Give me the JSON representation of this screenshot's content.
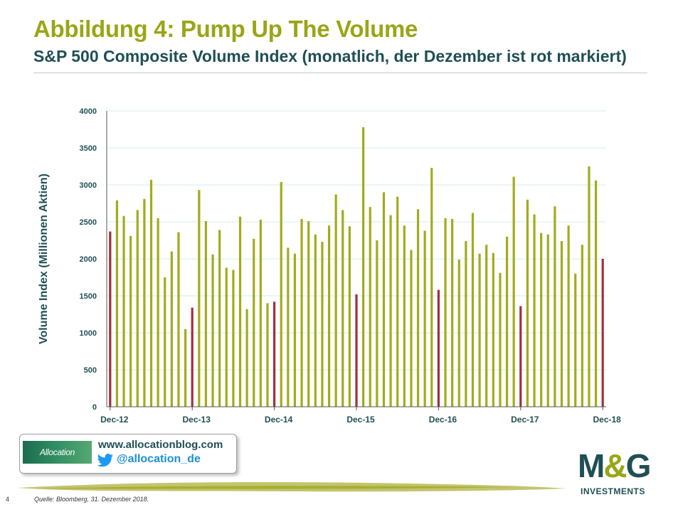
{
  "header": {
    "title": "Abbildung 4: Pump Up The Volume",
    "subtitle": "S&P 500 Composite Volume Index (monatlich, der Dezember ist rot markiert)"
  },
  "footer": {
    "logo_text": "Allocation",
    "blog_url": "www.allocationblog.com",
    "twitter_handle": "@allocation_de",
    "brand_main": "M",
    "brand_amp": "&",
    "brand_end": "G",
    "brand_sub": "INVESTMENTS",
    "page_number": "4",
    "source": "Quelle: Bloomberg, 31. Dezember 2018."
  },
  "colors": {
    "bar": "#a3ab1c",
    "december_bar": "#a0303c",
    "title": "#9aa516",
    "subtitle": "#1f4f55",
    "grid": "#d6ecee"
  },
  "chart_data": {
    "type": "bar",
    "ylabel": "Volume Index (Millionen Aktien)",
    "ylim": [
      0,
      4000
    ],
    "yticks": [
      0,
      500,
      1000,
      1500,
      2000,
      2500,
      3000,
      3500,
      4000
    ],
    "grid": true,
    "xtick_labels": [
      "Dec-12",
      "Dec-13",
      "Dec-14",
      "Dec-15",
      "Dec-16",
      "Dec-17",
      "Dec-18"
    ],
    "highlight": "December",
    "categories": [
      "Dec-12",
      "Jan-13",
      "Feb-13",
      "Mar-13",
      "Apr-13",
      "May-13",
      "Jun-13",
      "Jul-13",
      "Aug-13",
      "Sep-13",
      "Oct-13",
      "Nov-13",
      "Dec-13",
      "Jan-14",
      "Feb-14",
      "Mar-14",
      "Apr-14",
      "May-14",
      "Jun-14",
      "Jul-14",
      "Aug-14",
      "Sep-14",
      "Oct-14",
      "Nov-14",
      "Dec-14",
      "Jan-15",
      "Feb-15",
      "Mar-15",
      "Apr-15",
      "May-15",
      "Jun-15",
      "Jul-15",
      "Aug-15",
      "Sep-15",
      "Oct-15",
      "Nov-15",
      "Dec-15",
      "Jan-16",
      "Feb-16",
      "Mar-16",
      "Apr-16",
      "May-16",
      "Jun-16",
      "Jul-16",
      "Aug-16",
      "Sep-16",
      "Oct-16",
      "Nov-16",
      "Dec-16",
      "Jan-17",
      "Feb-17",
      "Mar-17",
      "Apr-17",
      "May-17",
      "Jun-17",
      "Jul-17",
      "Aug-17",
      "Sep-17",
      "Oct-17",
      "Nov-17",
      "Dec-17",
      "Jan-18",
      "Feb-18",
      "Mar-18",
      "Apr-18",
      "May-18",
      "Jun-18",
      "Jul-18",
      "Aug-18",
      "Sep-18",
      "Oct-18",
      "Nov-18",
      "Dec-18"
    ],
    "values": [
      2370,
      2790,
      2580,
      2310,
      2660,
      2810,
      3070,
      2550,
      1750,
      2100,
      2360,
      1050,
      1340,
      2930,
      2510,
      2060,
      2390,
      1880,
      1850,
      2570,
      1320,
      2270,
      2530,
      1400,
      1420,
      3040,
      2150,
      2070,
      2540,
      2510,
      2330,
      2230,
      2450,
      2870,
      2660,
      2440,
      1520,
      3780,
      2700,
      2250,
      2900,
      2590,
      2840,
      2450,
      2120,
      2670,
      2380,
      3230,
      1580,
      2550,
      2540,
      1990,
      2240,
      2620,
      2070,
      2190,
      2080,
      1810,
      2300,
      3110,
      1360,
      2800,
      2600,
      2350,
      2330,
      2710,
      2240,
      2450,
      1800,
      2190,
      3250,
      3060,
      2000
    ]
  }
}
